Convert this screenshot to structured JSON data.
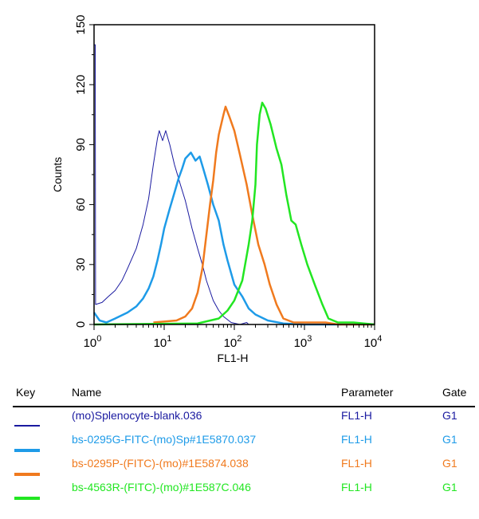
{
  "chart_data": {
    "type": "line",
    "xlabel": "FL1-H",
    "ylabel": "Counts",
    "xscale": "log",
    "xlim": [
      1,
      10000
    ],
    "ylim": [
      0,
      150
    ],
    "xticks": [
      {
        "base": "10",
        "exp": "0"
      },
      {
        "base": "10",
        "exp": "1"
      },
      {
        "base": "10",
        "exp": "2"
      },
      {
        "base": "10",
        "exp": "3"
      },
      {
        "base": "10",
        "exp": "4"
      }
    ],
    "yticks": [
      "0",
      "30",
      "60",
      "90",
      "120",
      "150"
    ],
    "grid": false,
    "series": [
      {
        "name": "(mo)Splenocyte-blank.036",
        "color": "#1a1aa0",
        "width": 1,
        "points": [
          [
            1,
            0
          ],
          [
            1,
            140
          ],
          [
            1.04,
            140
          ],
          [
            1.05,
            10
          ],
          [
            1.3,
            11
          ],
          [
            1.6,
            14
          ],
          [
            2,
            17
          ],
          [
            2.5,
            22
          ],
          [
            3,
            28
          ],
          [
            4,
            38
          ],
          [
            5,
            50
          ],
          [
            6,
            63
          ],
          [
            7,
            80
          ],
          [
            8,
            93
          ],
          [
            8.5,
            97
          ],
          [
            9.5,
            92
          ],
          [
            10.5,
            97
          ],
          [
            12,
            90
          ],
          [
            14,
            80
          ],
          [
            17,
            70
          ],
          [
            20,
            62
          ],
          [
            25,
            48
          ],
          [
            30,
            38
          ],
          [
            35,
            30
          ],
          [
            40,
            22
          ],
          [
            50,
            12
          ],
          [
            60,
            7
          ],
          [
            70,
            4
          ],
          [
            90,
            1
          ],
          [
            120,
            0
          ],
          [
            150,
            1
          ],
          [
            160,
            0
          ],
          [
            10000,
            0
          ]
        ]
      },
      {
        "name": "bs-0295G-FITC-(mo)Sp#1E5870.037",
        "color": "#1e9be8",
        "width": 2.5,
        "points": [
          [
            1,
            6
          ],
          [
            1.2,
            2
          ],
          [
            1.5,
            1
          ],
          [
            2,
            3
          ],
          [
            3,
            6
          ],
          [
            4,
            9
          ],
          [
            5,
            13
          ],
          [
            6,
            18
          ],
          [
            7,
            24
          ],
          [
            8,
            32
          ],
          [
            9,
            40
          ],
          [
            10,
            48
          ],
          [
            12,
            58
          ],
          [
            14,
            66
          ],
          [
            16,
            73
          ],
          [
            18,
            78
          ],
          [
            20,
            83
          ],
          [
            24,
            86
          ],
          [
            28,
            82
          ],
          [
            32,
            84
          ],
          [
            36,
            78
          ],
          [
            42,
            70
          ],
          [
            50,
            60
          ],
          [
            60,
            52
          ],
          [
            70,
            40
          ],
          [
            80,
            32
          ],
          [
            100,
            20
          ],
          [
            130,
            14
          ],
          [
            160,
            8
          ],
          [
            200,
            5
          ],
          [
            300,
            2
          ],
          [
            500,
            0.5
          ],
          [
            1000,
            0
          ],
          [
            10000,
            0
          ]
        ]
      },
      {
        "name": "bs-0295P-(FITC)-(mo)#1E5874.038",
        "color": "#f07a1e",
        "width": 2.5,
        "points": [
          [
            7,
            1
          ],
          [
            15,
            2
          ],
          [
            20,
            4
          ],
          [
            25,
            8
          ],
          [
            30,
            16
          ],
          [
            35,
            28
          ],
          [
            40,
            45
          ],
          [
            45,
            60
          ],
          [
            50,
            72
          ],
          [
            55,
            86
          ],
          [
            60,
            95
          ],
          [
            70,
            105
          ],
          [
            75,
            109
          ],
          [
            85,
            104
          ],
          [
            100,
            97
          ],
          [
            120,
            85
          ],
          [
            150,
            70
          ],
          [
            180,
            55
          ],
          [
            220,
            40
          ],
          [
            270,
            30
          ],
          [
            320,
            20
          ],
          [
            400,
            10
          ],
          [
            500,
            3
          ],
          [
            700,
            1
          ],
          [
            2000,
            1
          ],
          [
            3000,
            0
          ],
          [
            10000,
            0
          ]
        ]
      },
      {
        "name": "bs-4563R-(FITC)-(mo)#1E587C.046",
        "color": "#22e622",
        "width": 2.5,
        "points": [
          [
            1,
            0
          ],
          [
            30,
            0.5
          ],
          [
            60,
            3
          ],
          [
            80,
            7
          ],
          [
            100,
            12
          ],
          [
            130,
            22
          ],
          [
            160,
            40
          ],
          [
            180,
            52
          ],
          [
            200,
            70
          ],
          [
            210,
            90
          ],
          [
            230,
            105
          ],
          [
            250,
            111
          ],
          [
            280,
            108
          ],
          [
            330,
            100
          ],
          [
            400,
            88
          ],
          [
            470,
            80
          ],
          [
            550,
            65
          ],
          [
            650,
            52
          ],
          [
            750,
            50
          ],
          [
            900,
            40
          ],
          [
            1100,
            30
          ],
          [
            1400,
            20
          ],
          [
            1800,
            10
          ],
          [
            2200,
            3
          ],
          [
            3000,
            1
          ],
          [
            5000,
            1
          ],
          [
            10000,
            0
          ]
        ]
      }
    ]
  },
  "legend": {
    "headers": {
      "key": "Key",
      "name": "Name",
      "parameter": "Parameter",
      "gate": "Gate"
    },
    "rows": [
      {
        "name": "(mo)Splenocyte-blank.036",
        "parameter": "FL1-H",
        "gate": "G1",
        "color": "#1a1aa0"
      },
      {
        "name": "bs-0295G-FITC-(mo)Sp#1E5870.037",
        "parameter": "FL1-H",
        "gate": "G1",
        "color": "#1e9be8"
      },
      {
        "name": "bs-0295P-(FITC)-(mo)#1E5874.038",
        "parameter": "FL1-H",
        "gate": "G1",
        "color": "#f07a1e"
      },
      {
        "name": "bs-4563R-(FITC)-(mo)#1E587C.046",
        "parameter": "FL1-H",
        "gate": "G1",
        "color": "#22e622"
      }
    ]
  }
}
